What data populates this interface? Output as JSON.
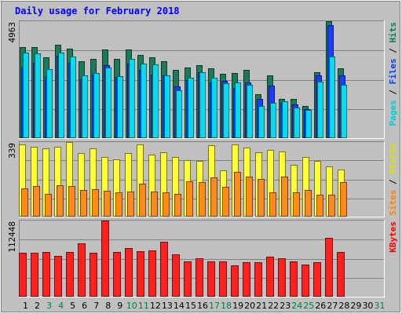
{
  "chart_data": {
    "type": "bar",
    "title": "Daily usage for February 2018",
    "title_color": "#0000ff",
    "background": "#c0c0c0",
    "plot_background": "#c0c0c0",
    "x": [
      "1",
      "2",
      "3",
      "4",
      "5",
      "6",
      "7",
      "8",
      "9",
      "10",
      "11",
      "12",
      "13",
      "14",
      "15",
      "16",
      "17",
      "18",
      "19",
      "20",
      "21",
      "22",
      "23",
      "24",
      "25",
      "26",
      "27",
      "28",
      "29",
      "30",
      "31"
    ],
    "weekend_days": [
      3,
      4,
      10,
      11,
      17,
      18,
      24,
      25,
      31
    ],
    "day_color": "#000000",
    "weekend_color": "#008040",
    "panels": [
      {
        "id": "hits",
        "ymax_label": "4963",
        "ymax": 4963,
        "side_labels": [
          {
            "text": "Pages",
            "color": "#00c8dc"
          },
          {
            "text": " / ",
            "color": "#000000"
          },
          {
            "text": "Files",
            "color": "#0040ff"
          },
          {
            "text": " / ",
            "color": "#000000"
          },
          {
            "text": "Hits",
            "color": "#008060"
          }
        ],
        "series": [
          {
            "name": "Hits",
            "color": "#1a7a5a",
            "values": [
              3870,
              3870,
              3440,
              3960,
              3790,
              3270,
              3360,
              3780,
              3360,
              3780,
              3540,
              3440,
              3280,
              2890,
              3010,
              3090,
              2950,
              2720,
              2780,
              2900,
              1850,
              2670,
              1670,
              1680,
              1370,
              2800,
              4963,
              2950,
              0,
              0,
              0
            ]
          },
          {
            "name": "Files",
            "color": "#1e3cff",
            "values": [
              3000,
              3200,
              2600,
              3500,
              3200,
              2500,
              2700,
              3100,
              2600,
              3150,
              2900,
              2700,
              2650,
              2210,
              2450,
              2800,
              2370,
              2440,
              2120,
              2350,
              1650,
              2220,
              1510,
              1430,
              1230,
              2670,
              4780,
              2650,
              0,
              0,
              0
            ]
          },
          {
            "name": "Pages",
            "color": "#00dcf0",
            "values": [
              3640,
              3610,
              2920,
              3620,
              3460,
              2650,
              2760,
              3000,
              2620,
              3370,
              3150,
              3130,
              2680,
              2020,
              2560,
              2800,
              2550,
              2320,
              2380,
              2250,
              1380,
              1500,
              1570,
              1300,
              1190,
              2410,
              3450,
              2260,
              0,
              0,
              0
            ]
          }
        ]
      },
      {
        "id": "visits",
        "ymax_label": "339",
        "ymax": 339,
        "side_labels": [
          {
            "text": "Sites",
            "color": "#ff8000"
          },
          {
            "text": " / ",
            "color": "#000000"
          },
          {
            "text": "Visits",
            "color": "#e0e000"
          }
        ],
        "series": [
          {
            "name": "Visits",
            "color": "#ffff33",
            "values": [
              330,
              317,
              311,
              318,
              339,
              290,
              312,
              270,
              260,
              290,
              327,
              282,
              291,
              270,
              257,
              254,
              323,
              212,
              327,
              315,
              292,
              304,
              297,
              236,
              271,
              252,
              230,
              214,
              0,
              0,
              0
            ]
          },
          {
            "name": "Sites",
            "color": "#ff8c1a",
            "values": [
              130,
              140,
              104,
              142,
              138,
              121,
              124,
              116,
              112,
              115,
              150,
              115,
              112,
              104,
              162,
              158,
              177,
              136,
              205,
              181,
              171,
              112,
              182,
              110,
              122,
              100,
              101,
              157,
              0,
              0,
              0
            ]
          }
        ]
      },
      {
        "id": "kbytes",
        "ymax_label": "112448",
        "ymax": 112448,
        "side_labels": [
          {
            "text": "KBytes",
            "color": "#ff0000"
          }
        ],
        "series": [
          {
            "name": "KBytes",
            "color": "#ff2020",
            "values": [
              64560,
              65430,
              66480,
              59990,
              65540,
              79290,
              65130,
              112448,
              66560,
              71780,
              67610,
              68350,
              80600,
              62960,
              52520,
              57050,
              52520,
              52020,
              46620,
              51000,
              50480,
              59220,
              57030,
              52450,
              47500,
              50500,
              87000,
              66060,
              0,
              0,
              0
            ]
          }
        ]
      }
    ]
  }
}
